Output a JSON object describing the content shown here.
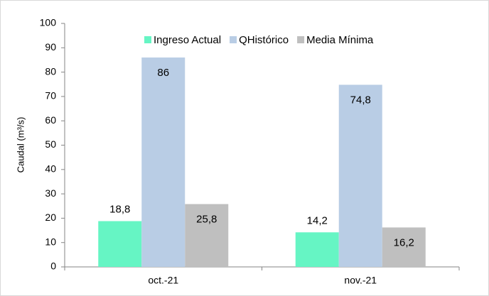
{
  "chart_data": {
    "type": "bar",
    "y_label": "Caudal (m³/s)",
    "categories": [
      "oct.-21",
      "nov.-21"
    ],
    "series": [
      {
        "name": "Ingreso Actual",
        "color": "#66f5c4",
        "values": [
          18.8,
          14.2
        ],
        "value_labels": [
          "18,8",
          "14,2"
        ]
      },
      {
        "name": "QHistórico",
        "color": "#b9cde5",
        "values": [
          86,
          74.8
        ],
        "value_labels": [
          "86",
          "74,8"
        ]
      },
      {
        "name": "Media Mínima",
        "color": "#bfbfbf",
        "values": [
          25.8,
          16.2
        ],
        "value_labels": [
          "25,8",
          "16,2"
        ]
      }
    ],
    "ylim": [
      0,
      100
    ],
    "yticks": [
      0,
      10,
      20,
      30,
      40,
      50,
      60,
      70,
      80,
      90,
      100
    ],
    "grid": false,
    "legend": "top"
  }
}
